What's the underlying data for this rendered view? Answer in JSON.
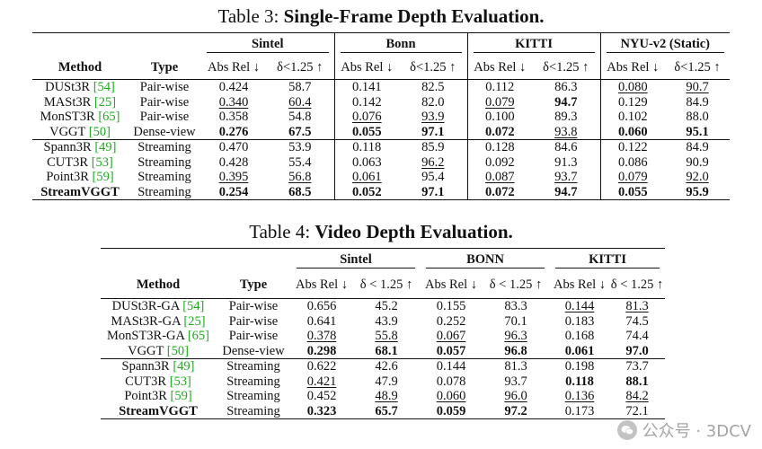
{
  "table3": {
    "caption_prefix": "Table 3:",
    "caption_title": "Single-Frame Depth Evaluation.",
    "col_method": "Method",
    "col_type": "Type",
    "groups": [
      "Sintel",
      "Bonn",
      "KITTI",
      "NYU-v2 (Static)"
    ],
    "metric_a": "Abs Rel ↓",
    "metric_b": "δ<1.25 ↑",
    "rows": [
      {
        "method": "DUSt3R",
        "cite": "[54]",
        "type": "Pair-wise",
        "v": [
          "0.424",
          "58.7",
          "0.141",
          "82.5",
          "0.112",
          "86.3",
          "0.080",
          "90.7"
        ]
      },
      {
        "method": "MASt3R",
        "cite": "[25]",
        "type": "Pair-wise",
        "v": [
          "0.340",
          "60.4",
          "0.142",
          "82.0",
          "0.079",
          "94.7",
          "0.129",
          "84.9"
        ]
      },
      {
        "method": "MonST3R",
        "cite": "[65]",
        "type": "Pair-wise",
        "v": [
          "0.358",
          "54.8",
          "0.076",
          "93.9",
          "0.100",
          "89.3",
          "0.102",
          "88.0"
        ]
      },
      {
        "method": "VGGT",
        "cite": "[50]",
        "type": "Dense-view",
        "v": [
          "0.276",
          "67.5",
          "0.055",
          "97.1",
          "0.072",
          "93.8",
          "0.060",
          "95.1"
        ]
      },
      {
        "method": "Spann3R",
        "cite": "[49]",
        "type": "Streaming",
        "v": [
          "0.470",
          "53.9",
          "0.118",
          "85.9",
          "0.128",
          "84.6",
          "0.122",
          "84.9"
        ]
      },
      {
        "method": "CUT3R",
        "cite": "[53]",
        "type": "Streaming",
        "v": [
          "0.428",
          "55.4",
          "0.063",
          "96.2",
          "0.092",
          "91.3",
          "0.086",
          "90.9"
        ]
      },
      {
        "method": "Point3R",
        "cite": "[59]",
        "type": "Streaming",
        "v": [
          "0.395",
          "56.8",
          "0.061",
          "95.4",
          "0.087",
          "93.7",
          "0.079",
          "92.0"
        ]
      },
      {
        "method": "StreamVGGT",
        "cite": "",
        "type": "Streaming",
        "v": [
          "0.254",
          "68.5",
          "0.052",
          "97.1",
          "0.072",
          "94.7",
          "0.055",
          "95.9"
        ]
      }
    ]
  },
  "table4": {
    "caption_prefix": "Table 4:",
    "caption_title": "Video Depth Evaluation.",
    "col_method": "Method",
    "col_type": "Type",
    "groups": [
      "Sintel",
      "BONN",
      "KITTI"
    ],
    "metric_a": "Abs Rel ↓",
    "metric_b": "δ < 1.25 ↑",
    "rows": [
      {
        "method": "DUSt3R-GA",
        "cite": "[54]",
        "type": "Pair-wise",
        "v": [
          "0.656",
          "45.2",
          "0.155",
          "83.3",
          "0.144",
          "81.3"
        ]
      },
      {
        "method": "MASt3R-GA",
        "cite": "[25]",
        "type": "Pair-wise",
        "v": [
          "0.641",
          "43.9",
          "0.252",
          "70.1",
          "0.183",
          "74.5"
        ]
      },
      {
        "method": "MonST3R-GA",
        "cite": "[65]",
        "type": "Pair-wise",
        "v": [
          "0.378",
          "55.8",
          "0.067",
          "96.3",
          "0.168",
          "74.4"
        ]
      },
      {
        "method": "VGGT",
        "cite": "[50]",
        "type": "Dense-view",
        "v": [
          "0.298",
          "68.1",
          "0.057",
          "96.8",
          "0.061",
          "97.0"
        ]
      },
      {
        "method": "Spann3R",
        "cite": "[49]",
        "type": "Streaming",
        "v": [
          "0.622",
          "42.6",
          "0.144",
          "81.3",
          "0.198",
          "73.7"
        ]
      },
      {
        "method": "CUT3R",
        "cite": "[53]",
        "type": "Streaming",
        "v": [
          "0.421",
          "47.9",
          "0.078",
          "93.7",
          "0.118",
          "88.1"
        ]
      },
      {
        "method": "Point3R",
        "cite": "[59]",
        "type": "Streaming",
        "v": [
          "0.452",
          "48.9",
          "0.060",
          "96.0",
          "0.136",
          "84.2"
        ]
      },
      {
        "method": "StreamVGGT",
        "cite": "",
        "type": "Streaming",
        "v": [
          "0.323",
          "65.7",
          "0.059",
          "97.2",
          "0.173",
          "72.1"
        ]
      }
    ]
  },
  "watermark": {
    "text": "公众号 · 3DCV",
    "icon": "wechat-icon"
  }
}
